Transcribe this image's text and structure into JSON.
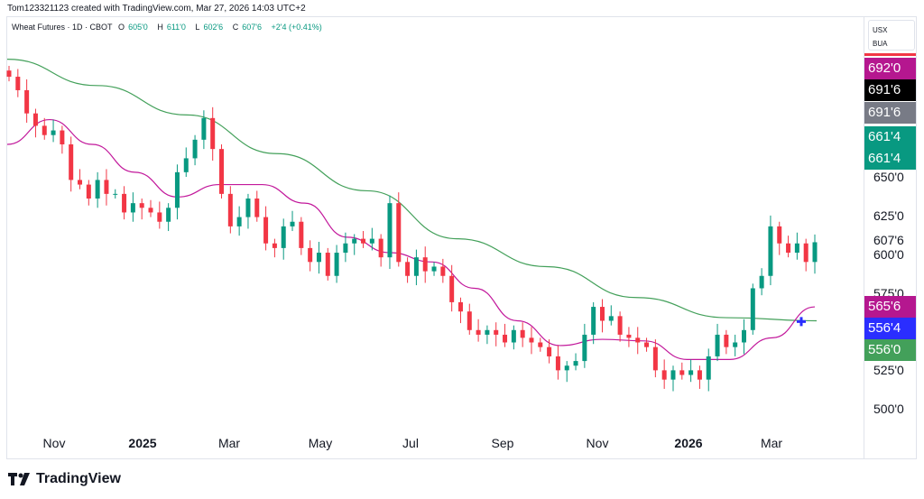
{
  "attribution": "Tom123321123 created with TradingView.com, Mar 27, 2026 14:03 UTC+2",
  "legend": {
    "symbol": "Wheat Futures · 1D · CBOT",
    "o_label": "O",
    "o": "605'0",
    "h_label": "H",
    "h": "611'0",
    "l_label": "L",
    "l": "602'6",
    "c_label": "C",
    "c": "607'6",
    "change": "+2'4 (+0.41%)"
  },
  "units": {
    "line1": "USX",
    "line2": "BUA"
  },
  "price_labels": [
    {
      "text": "692'0",
      "color": "#b5178f"
    },
    {
      "text": "691'6",
      "color": "#000000"
    },
    {
      "text": "691'6",
      "color": "#787b86"
    },
    {
      "text": "661'4",
      "color": "#089981"
    },
    {
      "text": "661'4",
      "color": "#089981"
    },
    {
      "text": "565'6",
      "color": "#b5178f"
    },
    {
      "text": "556'4",
      "color": "#2a2eff"
    },
    {
      "text": "556'0",
      "color": "#43a05a"
    }
  ],
  "last_price": "607'6",
  "brand": "TradingView",
  "colors": {
    "up": "#089981",
    "down": "#f23645",
    "ma_slow": "#43a05a",
    "ma_fast": "#c2189b",
    "marker": "#2a2eff"
  },
  "chart_data": {
    "type": "candlestick",
    "title": "Wheat Futures · 1D · CBOT",
    "y_ticks": [
      {
        "value": 650,
        "label": "650'0"
      },
      {
        "value": 625,
        "label": "625'0"
      },
      {
        "value": 600,
        "label": "600'0"
      },
      {
        "value": 575,
        "label": "575'0"
      },
      {
        "value": 525,
        "label": "525'0"
      },
      {
        "value": 500,
        "label": "500'0"
      }
    ],
    "x_ticks": [
      {
        "label": "Nov",
        "bold": false
      },
      {
        "label": "2025",
        "bold": true
      },
      {
        "label": "Mar",
        "bold": false
      },
      {
        "label": "May",
        "bold": false
      },
      {
        "label": "Jul",
        "bold": false
      },
      {
        "label": "Sep",
        "bold": false
      },
      {
        "label": "Nov",
        "bold": false
      },
      {
        "label": "2026",
        "bold": true
      },
      {
        "label": "Mar",
        "bold": false
      }
    ],
    "x_range": [
      "Oct 2024",
      "Mar 27, 2026"
    ],
    "closes": [
      714.7,
      706,
      691,
      683,
      677,
      680,
      671,
      648,
      645,
      636,
      648,
      639,
      639,
      627,
      633,
      630,
      627,
      621,
      630,
      653,
      662,
      674,
      688,
      668,
      639,
      618,
      624,
      636,
      624,
      607,
      604,
      618,
      621,
      604,
      595,
      601,
      586,
      601,
      607,
      610,
      607,
      610,
      598,
      633,
      595,
      586,
      598,
      589,
      592,
      586,
      569,
      563,
      551,
      548,
      551,
      548,
      543,
      551,
      546,
      543,
      540,
      534,
      525,
      528,
      531,
      548,
      566,
      557,
      560,
      548,
      546,
      543,
      540,
      525,
      519,
      525,
      522,
      525,
      519,
      534,
      548,
      540,
      543,
      551,
      578,
      586,
      618,
      607,
      601,
      607,
      595,
      607.75
    ],
    "ma_slow": [
      726,
      709,
      690,
      665,
      641,
      610,
      592,
      572,
      559,
      557
    ],
    "ma_fast": [
      671,
      687,
      671,
      653,
      637,
      645,
      645,
      633,
      611,
      601,
      595,
      578,
      557,
      541,
      545,
      544,
      532,
      532,
      546,
      566
    ],
    "cross_marker_value": 556.5
  }
}
